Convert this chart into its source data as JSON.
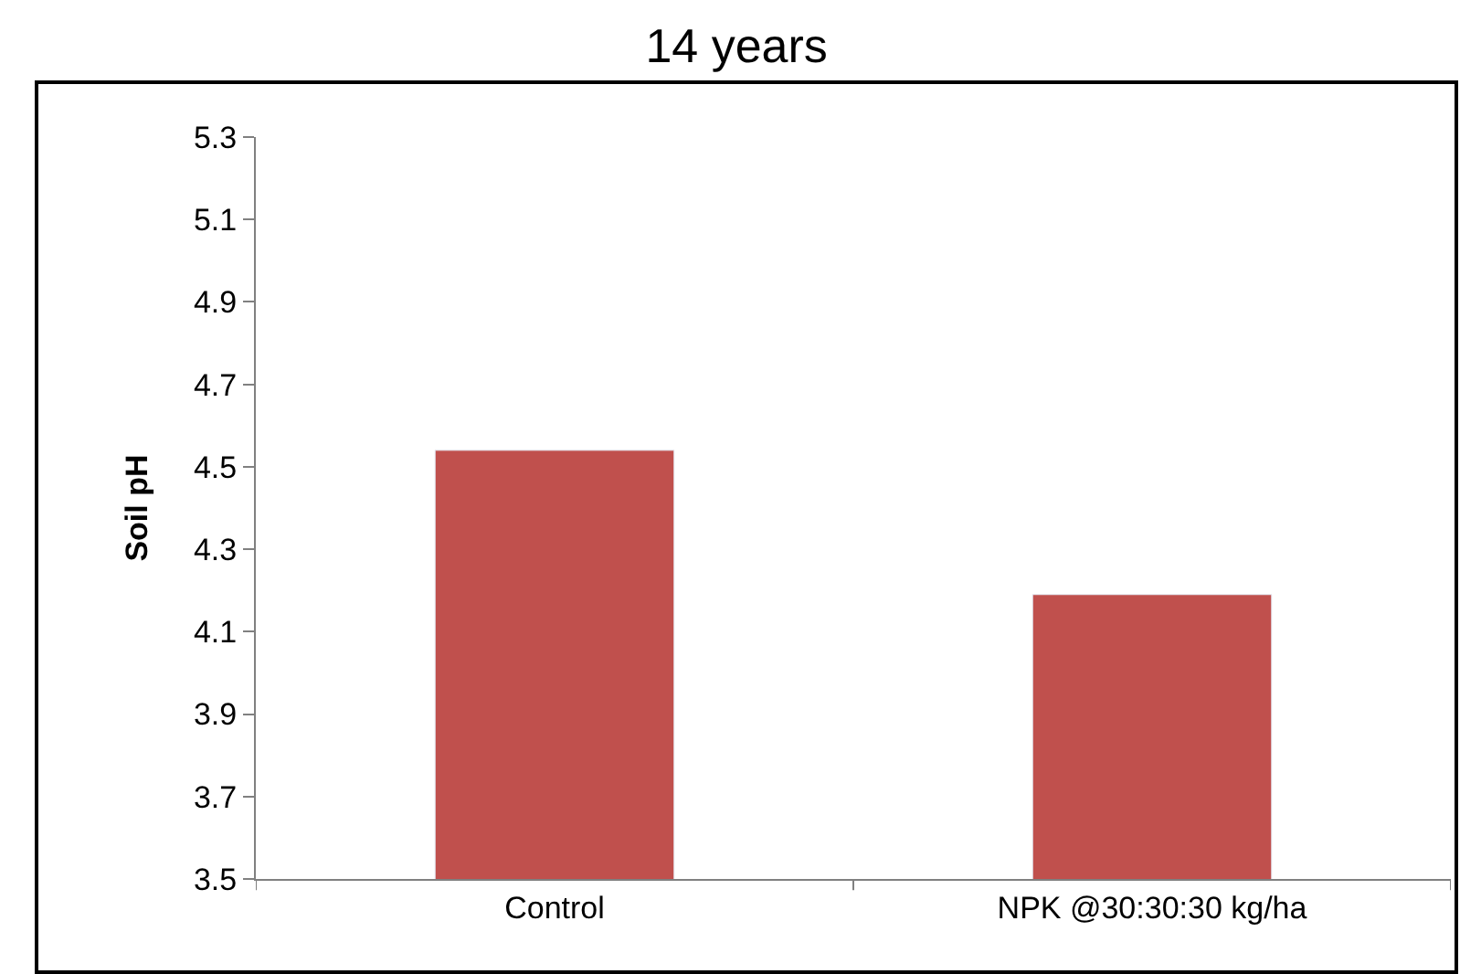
{
  "chart_data": {
    "type": "bar",
    "title": "14 years",
    "ylabel": "Soil pH",
    "categories": [
      "Control",
      "NPK @30:30:30 kg/ha"
    ],
    "values": [
      4.54,
      4.19
    ],
    "color": "#c0504d",
    "ylim": [
      3.5,
      5.3
    ],
    "yticks": [
      3.5,
      3.7,
      3.9,
      4.1,
      4.3,
      4.5,
      4.7,
      4.9,
      5.1,
      5.3
    ]
  }
}
